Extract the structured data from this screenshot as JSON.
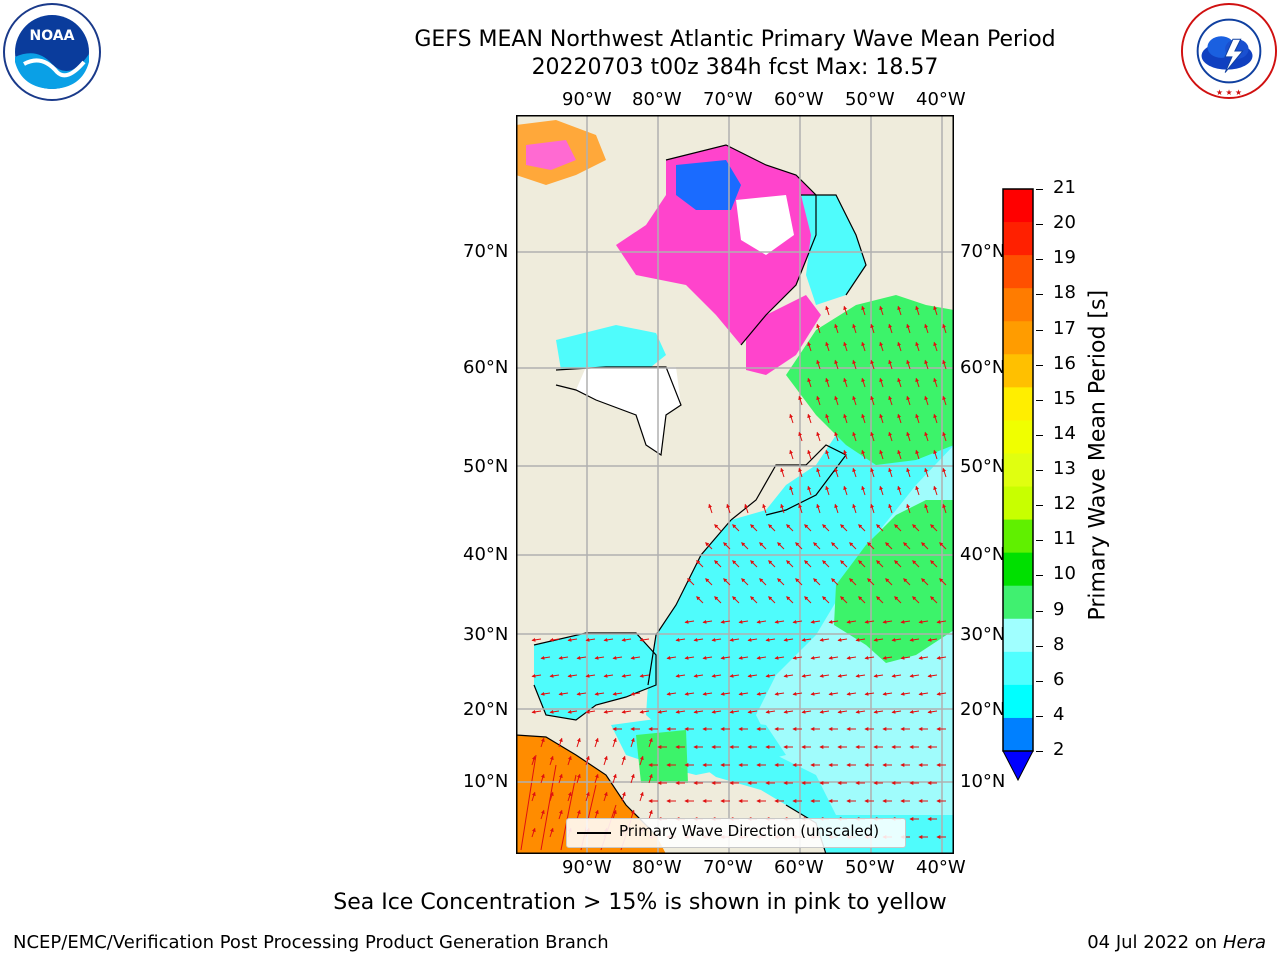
{
  "title": {
    "line1": "GEFS MEAN Northwest Atlantic Primary Wave Mean Period",
    "line2": "20220703 t00z 384h fcst   Max: 18.57"
  },
  "logos": {
    "left": {
      "name": "noaa-logo",
      "text": "NOAA",
      "ring_text": "NATIONAL OCEANIC AND ATMOSPHERIC ADMINISTRATION · U.S. DEPARTMENT OF COMMERCE"
    },
    "right": {
      "name": "nws-logo",
      "ring_text": "NATIONAL WEATHER SERVICE"
    }
  },
  "map": {
    "lon_labels": [
      "90°W",
      "80°W",
      "70°W",
      "60°W",
      "50°W",
      "40°W"
    ],
    "lat_labels": [
      "70°N",
      "60°N",
      "50°N",
      "40°N",
      "30°N",
      "20°N",
      "10°N"
    ],
    "land_color": "#efecdc",
    "ocean_colors": {
      "short_period": "#4ffcfc",
      "mid_period": "#a0fcfc",
      "long_period": "#3cf36a",
      "tropics": "#ff8c00",
      "ice": "#ff44cc"
    },
    "arrow_color": "#e01010",
    "legend_label": "Primary Wave Direction (unscaled)"
  },
  "colorbar": {
    "label": "Primary Wave Mean Period [s]",
    "ticks": [
      "21",
      "20",
      "19",
      "18",
      "17",
      "16",
      "15",
      "14",
      "13",
      "12",
      "11",
      "10",
      "9",
      "8",
      "6",
      "4",
      "2"
    ],
    "colors_top_to_bottom": [
      "#ff0000",
      "#ff2000",
      "#ff5000",
      "#ff7c00",
      "#ff9c00",
      "#ffc000",
      "#ffee00",
      "#f0ff00",
      "#e0ff10",
      "#c8ff00",
      "#60f000",
      "#00e000",
      "#40f070",
      "#a0ffff",
      "#50ffff",
      "#00ffff",
      "#0080ff"
    ],
    "extend_color": "#0000ff"
  },
  "caption": "Sea Ice Concentration > 15% is shown in pink to yellow",
  "footer": {
    "left": "NCEP/EMC/Verification Post Processing Product Generation Branch",
    "right_date": "04 Jul 2022 on ",
    "right_host": "Hera"
  }
}
